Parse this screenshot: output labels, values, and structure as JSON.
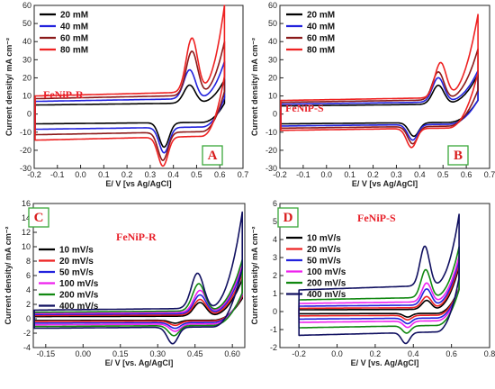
{
  "chart_data": [
    {
      "type": "line",
      "panel": "A",
      "sample": "FeNiP-R",
      "xlabel": "E/ V [vs Ag/AgCl]",
      "ylabel": "Current density/ mA cm⁻²",
      "xlim": [
        -0.2,
        0.7
      ],
      "ylim": [
        -30,
        60
      ],
      "xticks": [
        -0.2,
        -0.1,
        0.0,
        0.1,
        0.2,
        0.3,
        0.4,
        0.5,
        0.6,
        0.7
      ],
      "xtick_labels": [
        "-0.2",
        "-0.1",
        "0.0",
        "0.1",
        "0.2",
        "0.3",
        "0.4",
        "0.5",
        "0.6",
        "0.7"
      ],
      "yticks": [
        -30,
        -20,
        -10,
        0,
        10,
        20,
        30,
        40,
        50,
        60
      ],
      "legend": "top-left",
      "series": [
        {
          "name": "20 mM",
          "color": "#000000",
          "Ea": 0.47,
          "ipa": 15,
          "Ec": 0.36,
          "ipc": -18,
          "jmax": 19,
          "ia": 5,
          "ic": -4.5
        },
        {
          "name": "40 mM",
          "color": "#2222dd",
          "Ea": 0.47,
          "ipa": 23,
          "Ec": 0.36,
          "ipc": -21,
          "jmax": 29,
          "ia": 7,
          "ic": -7
        },
        {
          "name": "60 mM",
          "color": "#8b1a1a",
          "Ea": 0.48,
          "ipa": 33,
          "Ec": 0.355,
          "ipc": -25,
          "jmax": 40,
          "ia": 8.5,
          "ic": -9.5
        },
        {
          "name": "80 mM",
          "color": "#ee2222",
          "Ea": 0.48,
          "ipa": 40,
          "Ec": 0.355,
          "ipc": -28,
          "jmax": 60,
          "ia": 10,
          "ic": -12
        }
      ]
    },
    {
      "type": "line",
      "panel": "B",
      "sample": "FeNiP-S",
      "xlabel": "E/ V [vs Ag/AgCl]",
      "ylabel": "Current density/ mA cm⁻²",
      "xlim": [
        -0.2,
        0.7
      ],
      "ylim": [
        -30,
        60
      ],
      "xticks": [
        -0.2,
        -0.1,
        0.0,
        0.1,
        0.2,
        0.3,
        0.4,
        0.5,
        0.6,
        0.7
      ],
      "xtick_labels": [
        "-0.2",
        "-0.1",
        "0.0",
        "0.1",
        "0.2",
        "0.3",
        "0.4",
        "0.5",
        "0.6",
        "0.7"
      ],
      "yticks": [
        -30,
        -20,
        -10,
        0,
        10,
        20,
        30,
        40,
        50,
        60
      ],
      "legend": "top-left",
      "series": [
        {
          "name": "20 mM",
          "color": "#000000",
          "Ea": 0.48,
          "ipa": 15,
          "Ec": 0.375,
          "ipc": -12,
          "jmax": 22,
          "ia": 4.5,
          "ic": -4.5
        },
        {
          "name": "40 mM",
          "color": "#2222dd",
          "Ea": 0.48,
          "ipa": 19,
          "Ec": 0.37,
          "ipc": -14,
          "jmax": 24,
          "ia": 5.5,
          "ic": -5.5
        },
        {
          "name": "60 mM",
          "color": "#8b1a1a",
          "Ea": 0.48,
          "ipa": 22,
          "Ec": 0.37,
          "ipc": -16,
          "jmax": 36,
          "ia": 6.5,
          "ic": -6.5
        },
        {
          "name": "80 mM",
          "color": "#ee2222",
          "Ea": 0.49,
          "ipa": 27,
          "Ec": 0.365,
          "ipc": -18,
          "jmax": 55,
          "ia": 7.5,
          "ic": -7.5
        }
      ]
    },
    {
      "type": "line",
      "panel": "C",
      "sample": "FeNiP-R",
      "xlabel": "E/ V [vs. Ag/AgCl]",
      "ylabel": "Current density/ mA cm⁻²",
      "xlim": [
        -0.2,
        0.65
      ],
      "ylim": [
        -4,
        16
      ],
      "xticks": [
        -0.15,
        0.0,
        0.15,
        0.3,
        0.45,
        0.6
      ],
      "xtick_labels": [
        "-0.15",
        "0.00",
        "0.15",
        "0.30",
        "0.45",
        "0.60"
      ],
      "yticks": [
        -4,
        -2,
        0,
        2,
        4,
        6,
        8,
        10,
        12,
        14,
        16
      ],
      "legend": "center-left",
      "series": [
        {
          "name": "10 mV/s",
          "color": "#000000",
          "Ea": 0.47,
          "ipa": 2.2,
          "Ec": 0.37,
          "ipc": -0.6,
          "jmax": 5.5,
          "ia": 0.3,
          "ic": -0.2
        },
        {
          "name": "20 mV/s",
          "color": "#ee2222",
          "Ea": 0.47,
          "ipa": 2.6,
          "Ec": 0.37,
          "ipc": -0.9,
          "jmax": 6.2,
          "ia": 0.45,
          "ic": -0.3
        },
        {
          "name": "50 mV/s",
          "color": "#2222dd",
          "Ea": 0.47,
          "ipa": 3.2,
          "Ec": 0.37,
          "ipc": -1.3,
          "jmax": 7.0,
          "ia": 0.6,
          "ic": -0.5
        },
        {
          "name": "100 mV/s",
          "color": "#ee22ee",
          "Ea": 0.47,
          "ipa": 3.8,
          "Ec": 0.37,
          "ipc": -1.7,
          "jmax": 7.6,
          "ia": 0.75,
          "ic": -0.7
        },
        {
          "name": "200 mV/s",
          "color": "#118811",
          "Ea": 0.465,
          "ipa": 4.7,
          "Ec": 0.365,
          "ipc": -2.3,
          "jmax": 8.2,
          "ia": 0.9,
          "ic": -0.9
        },
        {
          "name": "400 mV/s",
          "color": "#101060",
          "Ea": 0.46,
          "ipa": 6.1,
          "Ec": 0.36,
          "ipc": -3.4,
          "jmax": 14.8,
          "ia": 1.2,
          "ic": -1.1
        }
      ]
    },
    {
      "type": "line",
      "panel": "D",
      "sample": "FeNiP-S",
      "xlabel": "E/ V [vs. Ag/AgCl]",
      "ylabel": "Current density/ mA cm⁻²",
      "xlim": [
        -0.3,
        0.8
      ],
      "ylim": [
        -2,
        6
      ],
      "xticks": [
        -0.2,
        0.0,
        0.2,
        0.4,
        0.6,
        0.8
      ],
      "xtick_labels": [
        "-0.2",
        "0.0",
        "0.2",
        "0.4",
        "0.6",
        "0.8"
      ],
      "yticks": [
        -2,
        -1,
        0,
        1,
        2,
        3,
        4,
        5,
        6
      ],
      "legend": "center-left",
      "series": [
        {
          "name": "10 mV/s",
          "color": "#000000",
          "Ea": 0.47,
          "ipa": 0.6,
          "Ec": 0.37,
          "ipc": -0.3,
          "jmax": 2.5,
          "ia": 0.1,
          "ic": -0.1
        },
        {
          "name": "20 mV/s",
          "color": "#ee2222",
          "Ea": 0.47,
          "ipa": 0.8,
          "Ec": 0.37,
          "ipc": -0.45,
          "jmax": 2.7,
          "ia": 0.18,
          "ic": -0.2
        },
        {
          "name": "50 mV/s",
          "color": "#2222dd",
          "Ea": 0.47,
          "ipa": 1.2,
          "Ec": 0.37,
          "ipc": -0.65,
          "jmax": 2.9,
          "ia": 0.3,
          "ic": -0.35
        },
        {
          "name": "100 mV/s",
          "color": "#ee22ee",
          "Ea": 0.47,
          "ipa": 1.5,
          "Ec": 0.37,
          "ipc": -0.85,
          "jmax": 3.1,
          "ia": 0.45,
          "ic": -0.5
        },
        {
          "name": "200 mV/s",
          "color": "#118811",
          "Ea": 0.465,
          "ipa": 2.2,
          "Ec": 0.365,
          "ipc": -1.15,
          "jmax": 3.6,
          "ia": 0.65,
          "ic": -0.75
        },
        {
          "name": "400 mV/s",
          "color": "#101060",
          "Ea": 0.46,
          "ipa": 3.4,
          "Ec": 0.36,
          "ipc": -1.7,
          "jmax": 5.4,
          "ia": 1.2,
          "ic": -1.1
        }
      ]
    }
  ]
}
